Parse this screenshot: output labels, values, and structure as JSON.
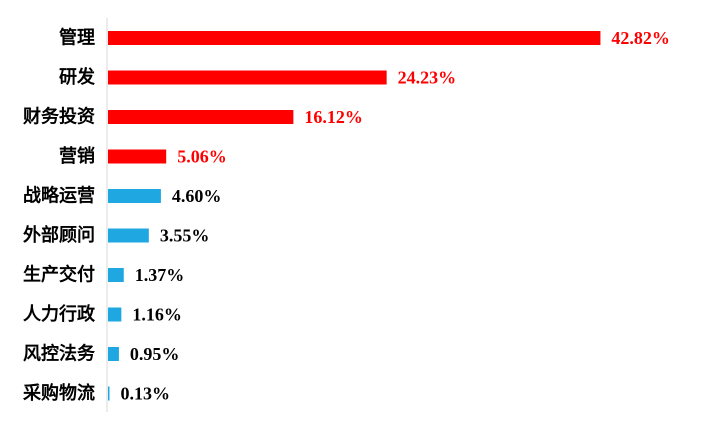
{
  "chart_data": {
    "type": "bar",
    "orientation": "horizontal",
    "categories": [
      "管理",
      "研发",
      "财务投资",
      "营销",
      "战略运营",
      "外部顾问",
      "生产交付",
      "人力行政",
      "风控法务",
      "采购物流"
    ],
    "values": [
      42.82,
      24.23,
      16.12,
      5.06,
      4.6,
      3.55,
      1.37,
      1.16,
      0.95,
      0.13
    ],
    "value_labels": [
      "42.82%",
      "24.23%",
      "16.12%",
      "5.06%",
      "4.60%",
      "3.55%",
      "1.37%",
      "1.16%",
      "0.95%",
      "0.13%"
    ],
    "highlight_count": 4,
    "colors": {
      "highlight": "#ff0000",
      "normal": "#1ea7e1",
      "axis": "#d9d9d9",
      "highlight_label": "#ff0000",
      "normal_label": "#000000"
    },
    "title": "",
    "xlabel": "",
    "ylabel": "",
    "grid": false,
    "legend": "none"
  }
}
